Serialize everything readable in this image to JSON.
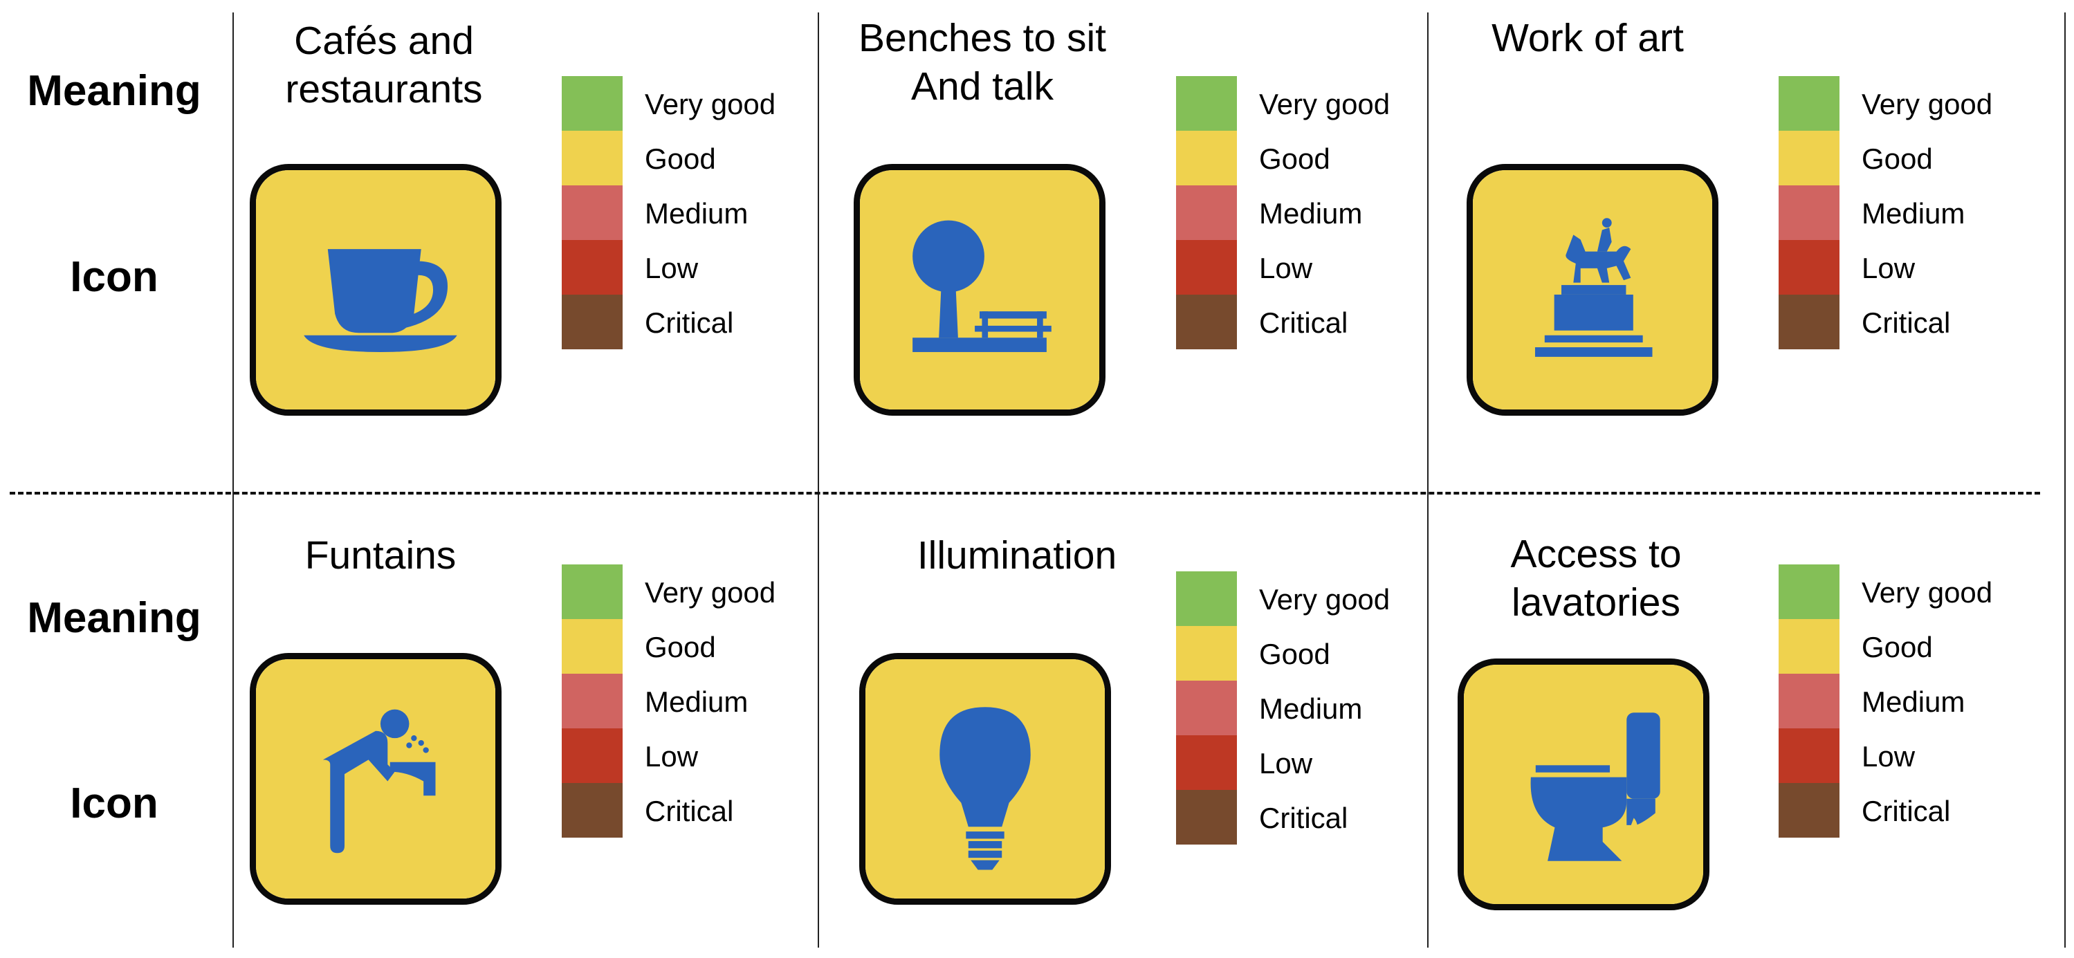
{
  "row_labels": {
    "row1": {
      "meaning": "Meaning",
      "icon": "Icon"
    },
    "row2": {
      "meaning": "Meaning",
      "icon": "Icon"
    }
  },
  "scale_levels": [
    {
      "label": "Very good",
      "color": "#84bf57"
    },
    {
      "label": "Good",
      "color": "#efd24e"
    },
    {
      "label": "Medium",
      "color": "#d06461"
    },
    {
      "label": "Low",
      "color": "#be3824"
    },
    {
      "label": "Critical",
      "color": "#774a2d"
    }
  ],
  "icon_colors": {
    "background": "#efd24e",
    "glyph": "#2a64bb",
    "border": "#0a0a0a"
  },
  "cards": [
    {
      "title": "Cafés and\nrestaurants",
      "icon": "coffee-cup-icon"
    },
    {
      "title": "Benches to sit\nAnd talk",
      "icon": "tree-and-bench-icon"
    },
    {
      "title": "Work of art",
      "icon": "equestrian-statue-icon"
    },
    {
      "title": "Funtains",
      "icon": "drinking-fountain-icon"
    },
    {
      "title": "Illumination",
      "icon": "light-bulb-icon"
    },
    {
      "title": "Access to\nlavatories",
      "icon": "toilet-icon"
    }
  ]
}
